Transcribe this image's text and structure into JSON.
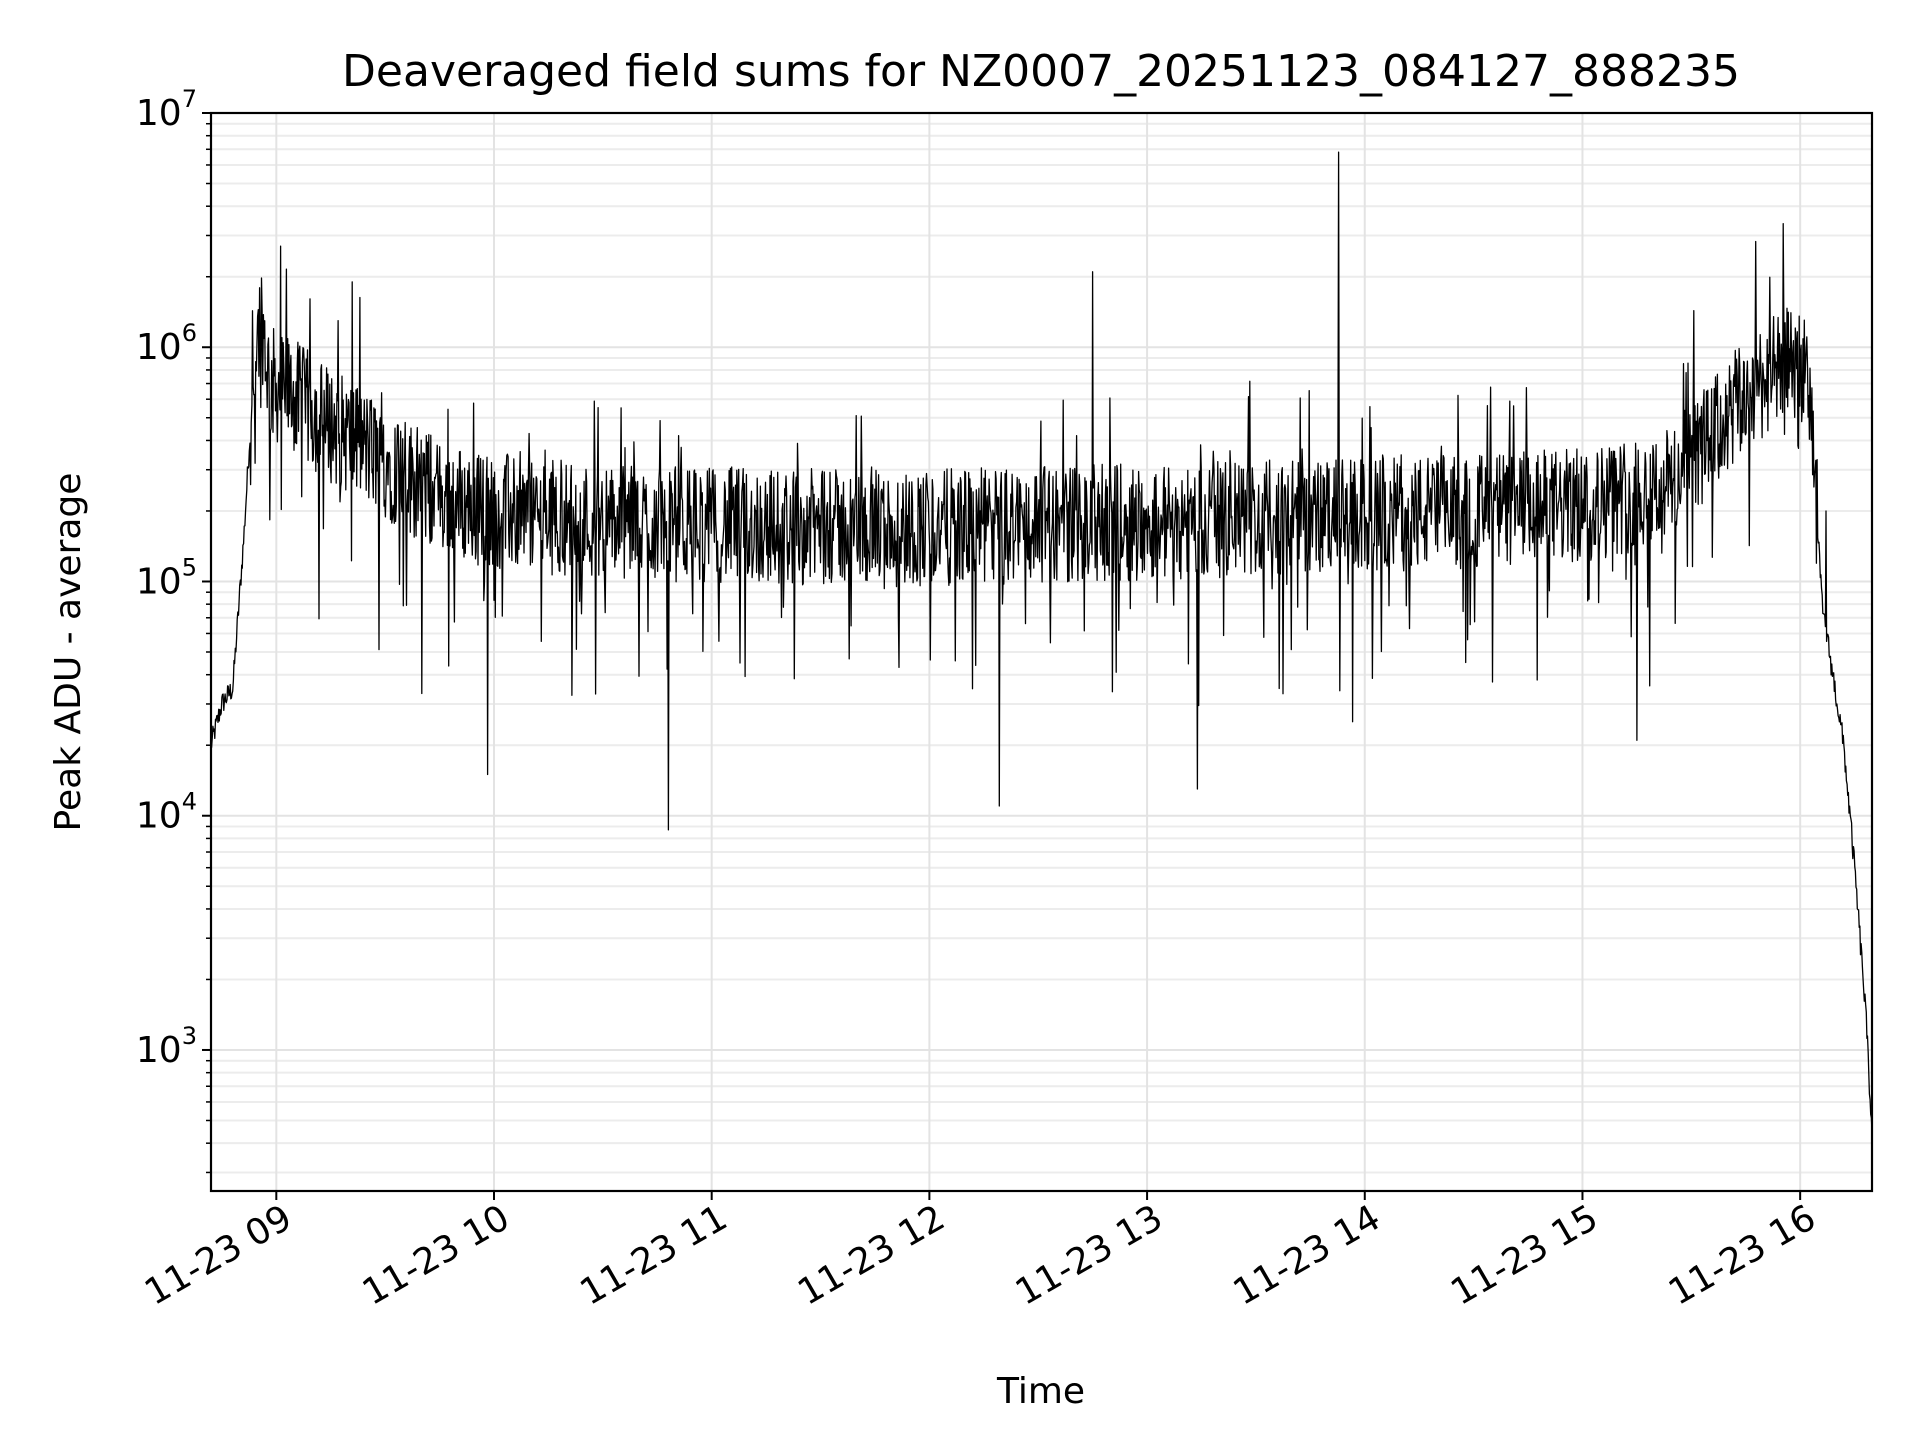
{
  "chart_data": {
    "type": "line",
    "title": "Deaveraged field sums for NZ0007_20251123_084127_888235",
    "xlabel": "Time",
    "ylabel": "Peak ADU - average",
    "yscale": "log",
    "xlim_hours": [
      8.7,
      16.33
    ],
    "ylim": [
      250,
      10000000
    ],
    "grid": true,
    "x_ticks": [
      {
        "hour": 9,
        "label": "11-23 09"
      },
      {
        "hour": 10,
        "label": "11-23 10"
      },
      {
        "hour": 11,
        "label": "11-23 11"
      },
      {
        "hour": 12,
        "label": "11-23 12"
      },
      {
        "hour": 13,
        "label": "11-23 13"
      },
      {
        "hour": 14,
        "label": "11-23 14"
      },
      {
        "hour": 15,
        "label": "11-23 15"
      },
      {
        "hour": 16,
        "label": "11-23 16"
      }
    ],
    "y_ticks": [
      {
        "value": 1000,
        "base": "10",
        "exp": "3"
      },
      {
        "value": 10000,
        "base": "10",
        "exp": "4"
      },
      {
        "value": 100000,
        "base": "10",
        "exp": "5"
      },
      {
        "value": 1000000,
        "base": "10",
        "exp": "6"
      },
      {
        "value": 10000000,
        "base": "10",
        "exp": "7"
      }
    ],
    "series": [
      {
        "name": "field sums",
        "color": "#000000",
        "baseline": [
          [
            8.7,
            20000
          ],
          [
            8.75,
            30000
          ],
          [
            8.8,
            35000
          ],
          [
            8.85,
            150000
          ],
          [
            8.9,
            900000
          ],
          [
            8.93,
            1400000
          ],
          [
            8.97,
            700000
          ],
          [
            9.05,
            650000
          ],
          [
            9.2,
            500000
          ],
          [
            9.4,
            380000
          ],
          [
            9.6,
            280000
          ],
          [
            9.8,
            220000
          ],
          [
            10.0,
            200000
          ],
          [
            10.5,
            180000
          ],
          [
            11.0,
            175000
          ],
          [
            11.5,
            170000
          ],
          [
            12.0,
            170000
          ],
          [
            12.5,
            175000
          ],
          [
            13.0,
            180000
          ],
          [
            13.5,
            185000
          ],
          [
            14.0,
            190000
          ],
          [
            14.5,
            200000
          ],
          [
            15.0,
            210000
          ],
          [
            15.4,
            260000
          ],
          [
            15.6,
            420000
          ],
          [
            15.8,
            700000
          ],
          [
            16.0,
            900000
          ],
          [
            16.05,
            550000
          ],
          [
            16.1,
            80000
          ],
          [
            16.15,
            40000
          ],
          [
            16.2,
            20000
          ],
          [
            16.25,
            6000
          ],
          [
            16.3,
            1500
          ],
          [
            16.33,
            450
          ]
        ],
        "spikes": [
          [
            9.02,
            2700000
          ],
          [
            9.35,
            1900000
          ],
          [
            9.97,
            15000
          ],
          [
            10.8,
            8700
          ],
          [
            12.75,
            2100000
          ],
          [
            12.32,
            11000
          ],
          [
            13.23,
            13000
          ],
          [
            13.88,
            6800000
          ],
          [
            15.25,
            21000
          ],
          [
            16.12,
            200000
          ]
        ],
        "noise_dex": 0.25,
        "sample_count": 2600
      }
    ]
  }
}
